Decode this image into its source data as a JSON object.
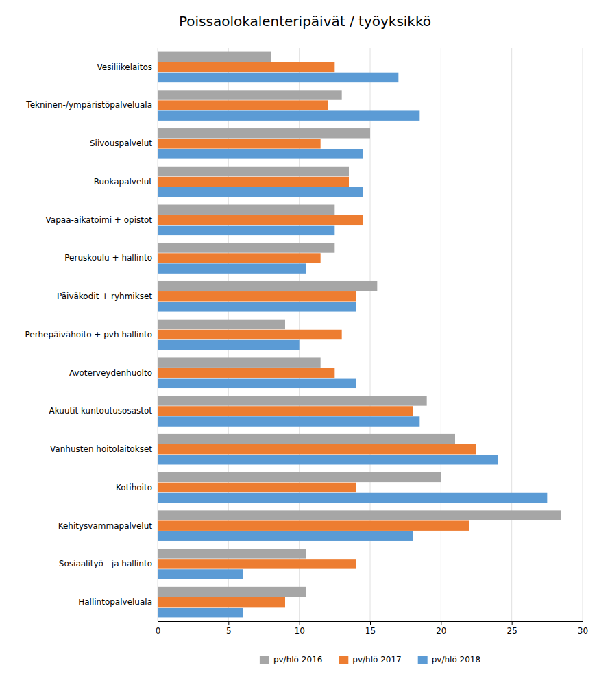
{
  "chart_data": {
    "type": "bar",
    "orientation": "horizontal",
    "title": "Poissaolokalenteripäivät / työyksikkö",
    "categories": [
      "Vesiliikelaitos",
      "Tekninen-/ympäristöpalveluala",
      "Siivouspalvelut",
      "Ruokapalvelut",
      "Vapaa-aikatoimi + opistot",
      "Peruskoulu + hallinto",
      "Päiväkodit + ryhmikset",
      "Perhepäivähoito + pvh hallinto",
      "Avoterveydenhuolto",
      "Akuutit kuntoutusosastot",
      "Vanhusten hoitolaitokset",
      "Kotihoito",
      "Kehitysvammapalvelut",
      "Sosiaalityö - ja hallinto",
      "Hallintopalveluala"
    ],
    "series": [
      {
        "name": "pv/hlö 2016",
        "color": "#a6a6a6",
        "values": [
          8.0,
          13.0,
          15.0,
          13.5,
          12.5,
          12.5,
          15.5,
          9.0,
          11.5,
          19.0,
          21.0,
          20.0,
          28.5,
          10.5,
          10.5
        ]
      },
      {
        "name": "pv/hlö 2017",
        "color": "#ed7d31",
        "values": [
          12.5,
          12.0,
          11.5,
          13.5,
          14.5,
          11.5,
          14.0,
          13.0,
          12.5,
          18.0,
          22.5,
          14.0,
          22.0,
          14.0,
          9.0
        ]
      },
      {
        "name": "pv/hlö 2018",
        "color": "#5b9bd5",
        "values": [
          17.0,
          18.5,
          14.5,
          14.5,
          12.5,
          10.5,
          14.0,
          10.0,
          14.0,
          18.5,
          24.0,
          27.5,
          18.0,
          6.0,
          6.0
        ]
      }
    ],
    "xlim": [
      0,
      30
    ],
    "xticks": [
      0,
      5,
      10,
      15,
      20,
      25,
      30
    ],
    "grid": true,
    "legend": "bottom"
  }
}
